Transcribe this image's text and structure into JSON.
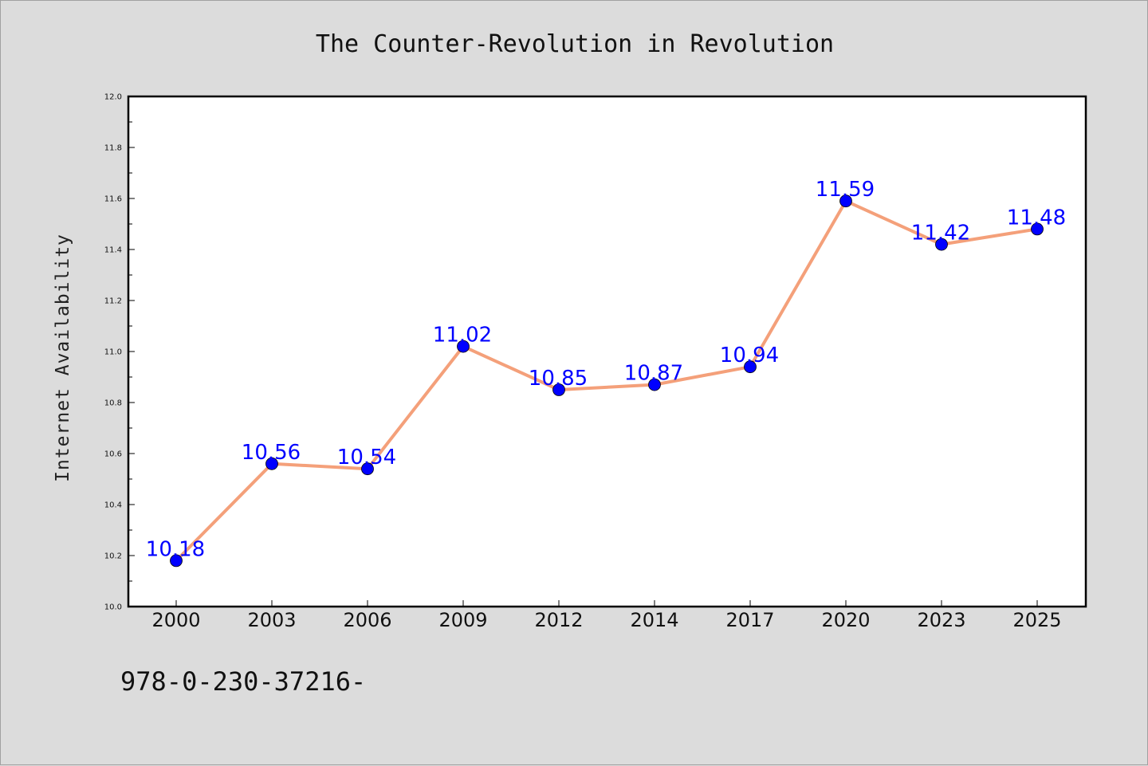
{
  "chart_data": {
    "type": "line",
    "title": "The Counter-Revolution in Revolution",
    "xlabel": "",
    "ylabel": "Internet Availability",
    "categories": [
      "2000",
      "2003",
      "2006",
      "2009",
      "2012",
      "2014",
      "2017",
      "2020",
      "2023",
      "2025"
    ],
    "series": [
      {
        "values": [
          10.18,
          10.56,
          10.54,
          11.02,
          10.85,
          10.87,
          10.94,
          11.59,
          11.42,
          11.48
        ],
        "data_labels": [
          "10.18",
          "10.56",
          "10.54",
          "11.02",
          "10.85",
          "10.87",
          "10.94",
          "11.59",
          "11.42",
          "11.48"
        ],
        "line_color": "#f4a07a",
        "marker_color": "#0000ff"
      }
    ],
    "ylim": [
      10.0,
      12.0
    ],
    "yticks": [
      "10.0",
      "10.2",
      "10.4",
      "10.6",
      "10.8",
      "11.0",
      "11.2",
      "11.4",
      "11.6",
      "11.8",
      "12.0"
    ],
    "grid": false,
    "legend": "none"
  },
  "footer": {
    "text": "978-0-230-37216-"
  },
  "colors": {
    "background": "#dcdcdc",
    "plot_background": "#ffffff",
    "label_color": "#0000ff"
  }
}
